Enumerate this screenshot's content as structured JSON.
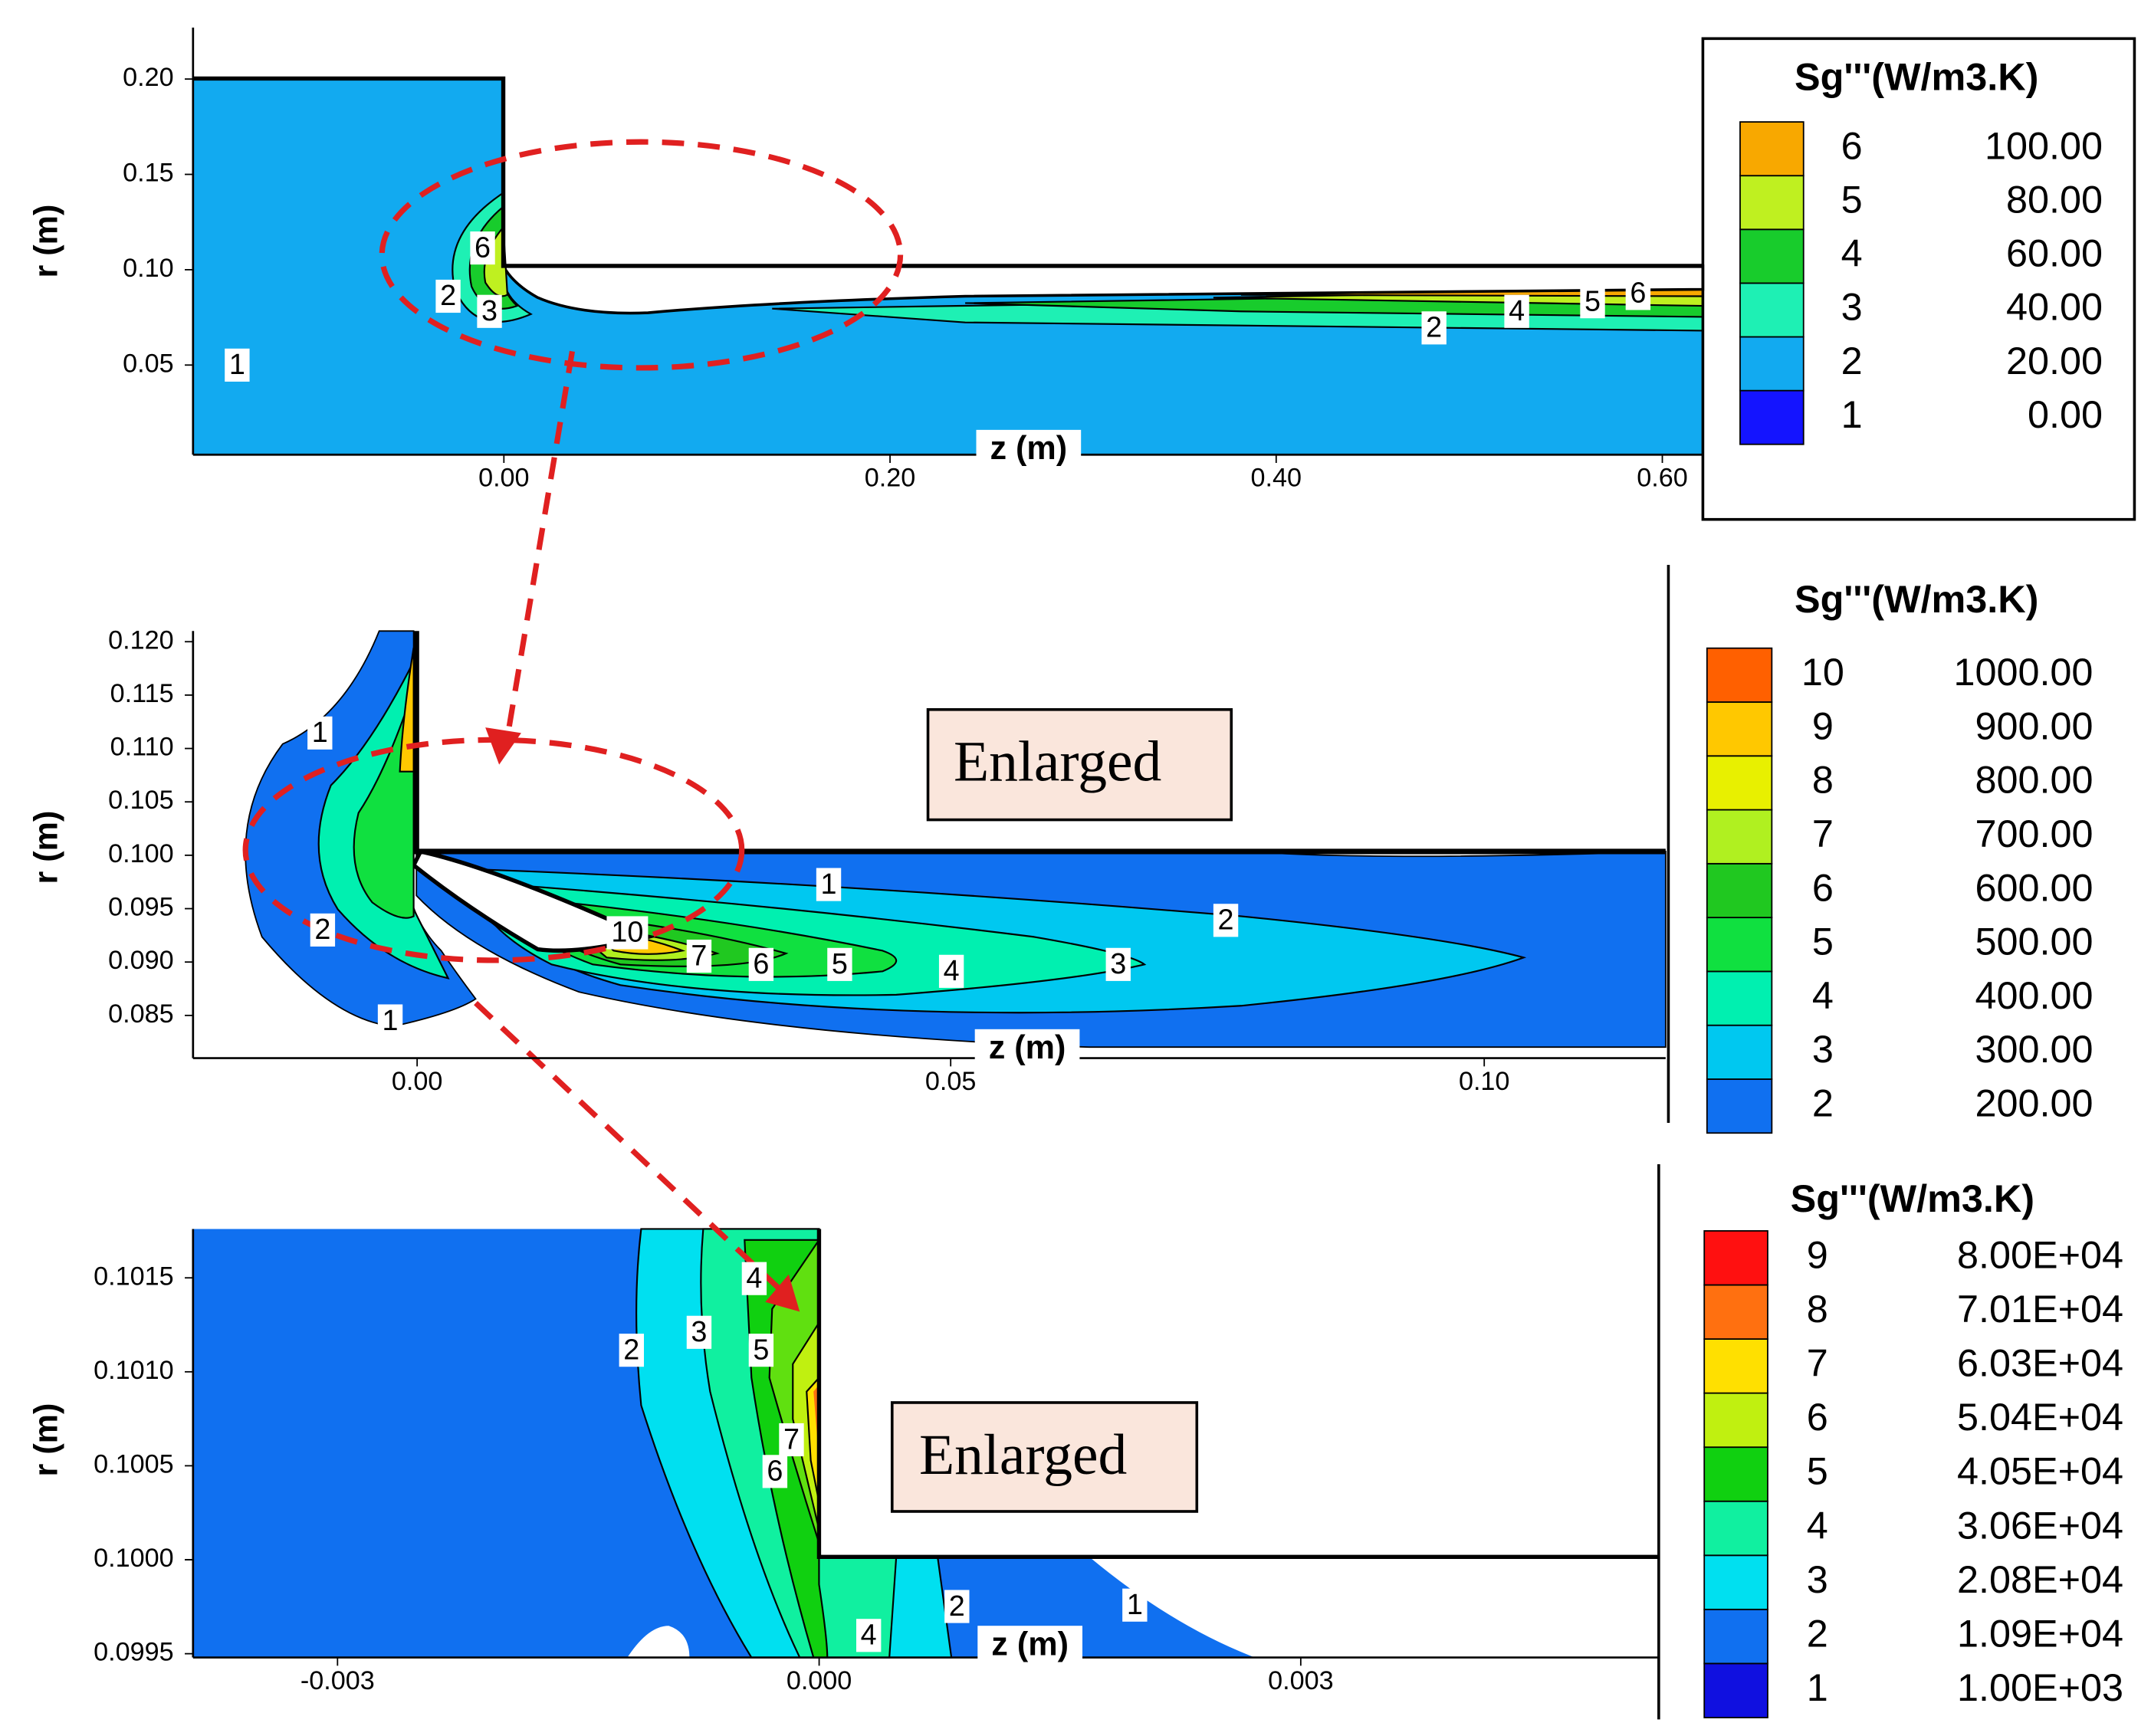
{
  "chart_data": [
    {
      "type": "contour",
      "x_label": "z (m)",
      "y_label": "r (m)",
      "xlim": [
        -0.161,
        0.621
      ],
      "ylim": [
        0.003,
        0.227
      ],
      "xticks": [
        {
          "value": 0,
          "label": "0.00"
        },
        {
          "value": 0.2,
          "label": "0.20"
        },
        {
          "value": 0.4,
          "label": "0.40"
        },
        {
          "value": 0.6,
          "label": "0.60"
        }
      ],
      "yticks": [
        {
          "value": 0.05,
          "label": "0.05"
        },
        {
          "value": 0.1,
          "label": "0.10"
        },
        {
          "value": 0.15,
          "label": "0.15"
        },
        {
          "value": 0.2,
          "label": "0.20"
        }
      ],
      "legend": {
        "title": "Sg'''(W/m3.K)",
        "levels": [
          1,
          2,
          3,
          4,
          5,
          6
        ],
        "values": [
          {
            "value": 0,
            "label": "0.00"
          },
          {
            "value": 20,
            "label": "20.00"
          },
          {
            "value": 40,
            "label": "40.00"
          },
          {
            "value": 60,
            "label": "60.00"
          },
          {
            "value": 80,
            "label": "80.00"
          },
          {
            "value": 100,
            "label": "100.00"
          }
        ],
        "colors": [
          "#1414ff",
          "#12aaf0",
          "#1ef0b4",
          "#18cc2c",
          "#bff020",
          "#f8a800"
        ]
      },
      "contour_labels": [
        1,
        2,
        3,
        6,
        2,
        4,
        5,
        6
      ]
    },
    {
      "type": "contour",
      "x_label": "z (m)",
      "y_label": "r (m)",
      "annotation": "Enlarged",
      "xlim": [
        -0.021,
        0.117
      ],
      "ylim": [
        0.081,
        0.121
      ],
      "xticks": [
        {
          "value": 0,
          "label": "0.00"
        },
        {
          "value": 0.05,
          "label": "0.05"
        },
        {
          "value": 0.1,
          "label": "0.10"
        }
      ],
      "yticks": [
        {
          "value": 0.085,
          "label": "0.085"
        },
        {
          "value": 0.09,
          "label": "0.090"
        },
        {
          "value": 0.095,
          "label": "0.095"
        },
        {
          "value": 0.1,
          "label": "0.100"
        },
        {
          "value": 0.105,
          "label": "0.105"
        },
        {
          "value": 0.11,
          "label": "0.110"
        },
        {
          "value": 0.115,
          "label": "0.115"
        },
        {
          "value": 0.12,
          "label": "0.120"
        }
      ],
      "legend": {
        "title": "Sg'''(W/m3.K)",
        "levels": [
          2,
          3,
          4,
          5,
          6,
          7,
          8,
          9,
          10
        ],
        "values": [
          {
            "value": 200,
            "label": "200.00"
          },
          {
            "value": 300,
            "label": "300.00"
          },
          {
            "value": 400,
            "label": "400.00"
          },
          {
            "value": 500,
            "label": "500.00"
          },
          {
            "value": 600,
            "label": "600.00"
          },
          {
            "value": 700,
            "label": "700.00"
          },
          {
            "value": 800,
            "label": "800.00"
          },
          {
            "value": 900,
            "label": "900.00"
          },
          {
            "value": 1000,
            "label": "1000.00"
          }
        ],
        "colors": [
          "#1070f0",
          "#00c8f0",
          "#00f0b0",
          "#10e040",
          "#20c820",
          "#b0f020",
          "#e8f000",
          "#ffc800",
          "#ff6000"
        ]
      },
      "contour_labels": [
        1,
        2,
        1,
        10,
        7,
        6,
        5,
        4,
        3,
        1,
        2
      ]
    },
    {
      "type": "contour",
      "x_label": "z (m)",
      "y_label": "r (m)",
      "annotation": "Enlarged",
      "xlim": [
        -0.0039,
        0.00523
      ],
      "ylim": [
        0.09948,
        0.10176
      ],
      "xticks": [
        {
          "value": -0.003,
          "label": "-0.003"
        },
        {
          "value": 0,
          "label": "0.000"
        },
        {
          "value": 0.003,
          "label": "0.003"
        }
      ],
      "yticks": [
        {
          "value": 0.0995,
          "label": "0.0995"
        },
        0.1,
        {
          "value": 0.1,
          "label": "0.1000"
        },
        {
          "value": 0.1005,
          "label": "0.1005"
        },
        {
          "value": 0.101,
          "label": "0.1010"
        },
        {
          "value": 0.1015,
          "label": "0.1015"
        }
      ],
      "legend": {
        "title": "Sg'''(W/m3.K)",
        "levels": [
          1,
          2,
          3,
          4,
          5,
          6,
          7,
          8,
          9
        ],
        "values": [
          {
            "value": 1000,
            "label": "1.00E+03"
          },
          {
            "value": 10900,
            "label": "1.09E+04"
          },
          {
            "value": 20800,
            "label": "2.08E+04"
          },
          {
            "value": 30600,
            "label": "3.06E+04"
          },
          {
            "value": 40500,
            "label": "4.05E+04"
          },
          {
            "value": 50400,
            "label": "5.04E+04"
          },
          {
            "value": 60300,
            "label": "6.03E+04"
          },
          {
            "value": 70100,
            "label": "7.01E+04"
          },
          {
            "value": 80000,
            "label": "8.00E+04"
          }
        ],
        "colors": [
          "#1010e0",
          "#1070f0",
          "#00e0f0",
          "#10f0a0",
          "#10d010",
          "#c0f010",
          "#ffe000",
          "#ff7010",
          "#ff1010"
        ]
      },
      "contour_labels": [
        4,
        2,
        3,
        5,
        7,
        6,
        4,
        2,
        1
      ]
    }
  ]
}
